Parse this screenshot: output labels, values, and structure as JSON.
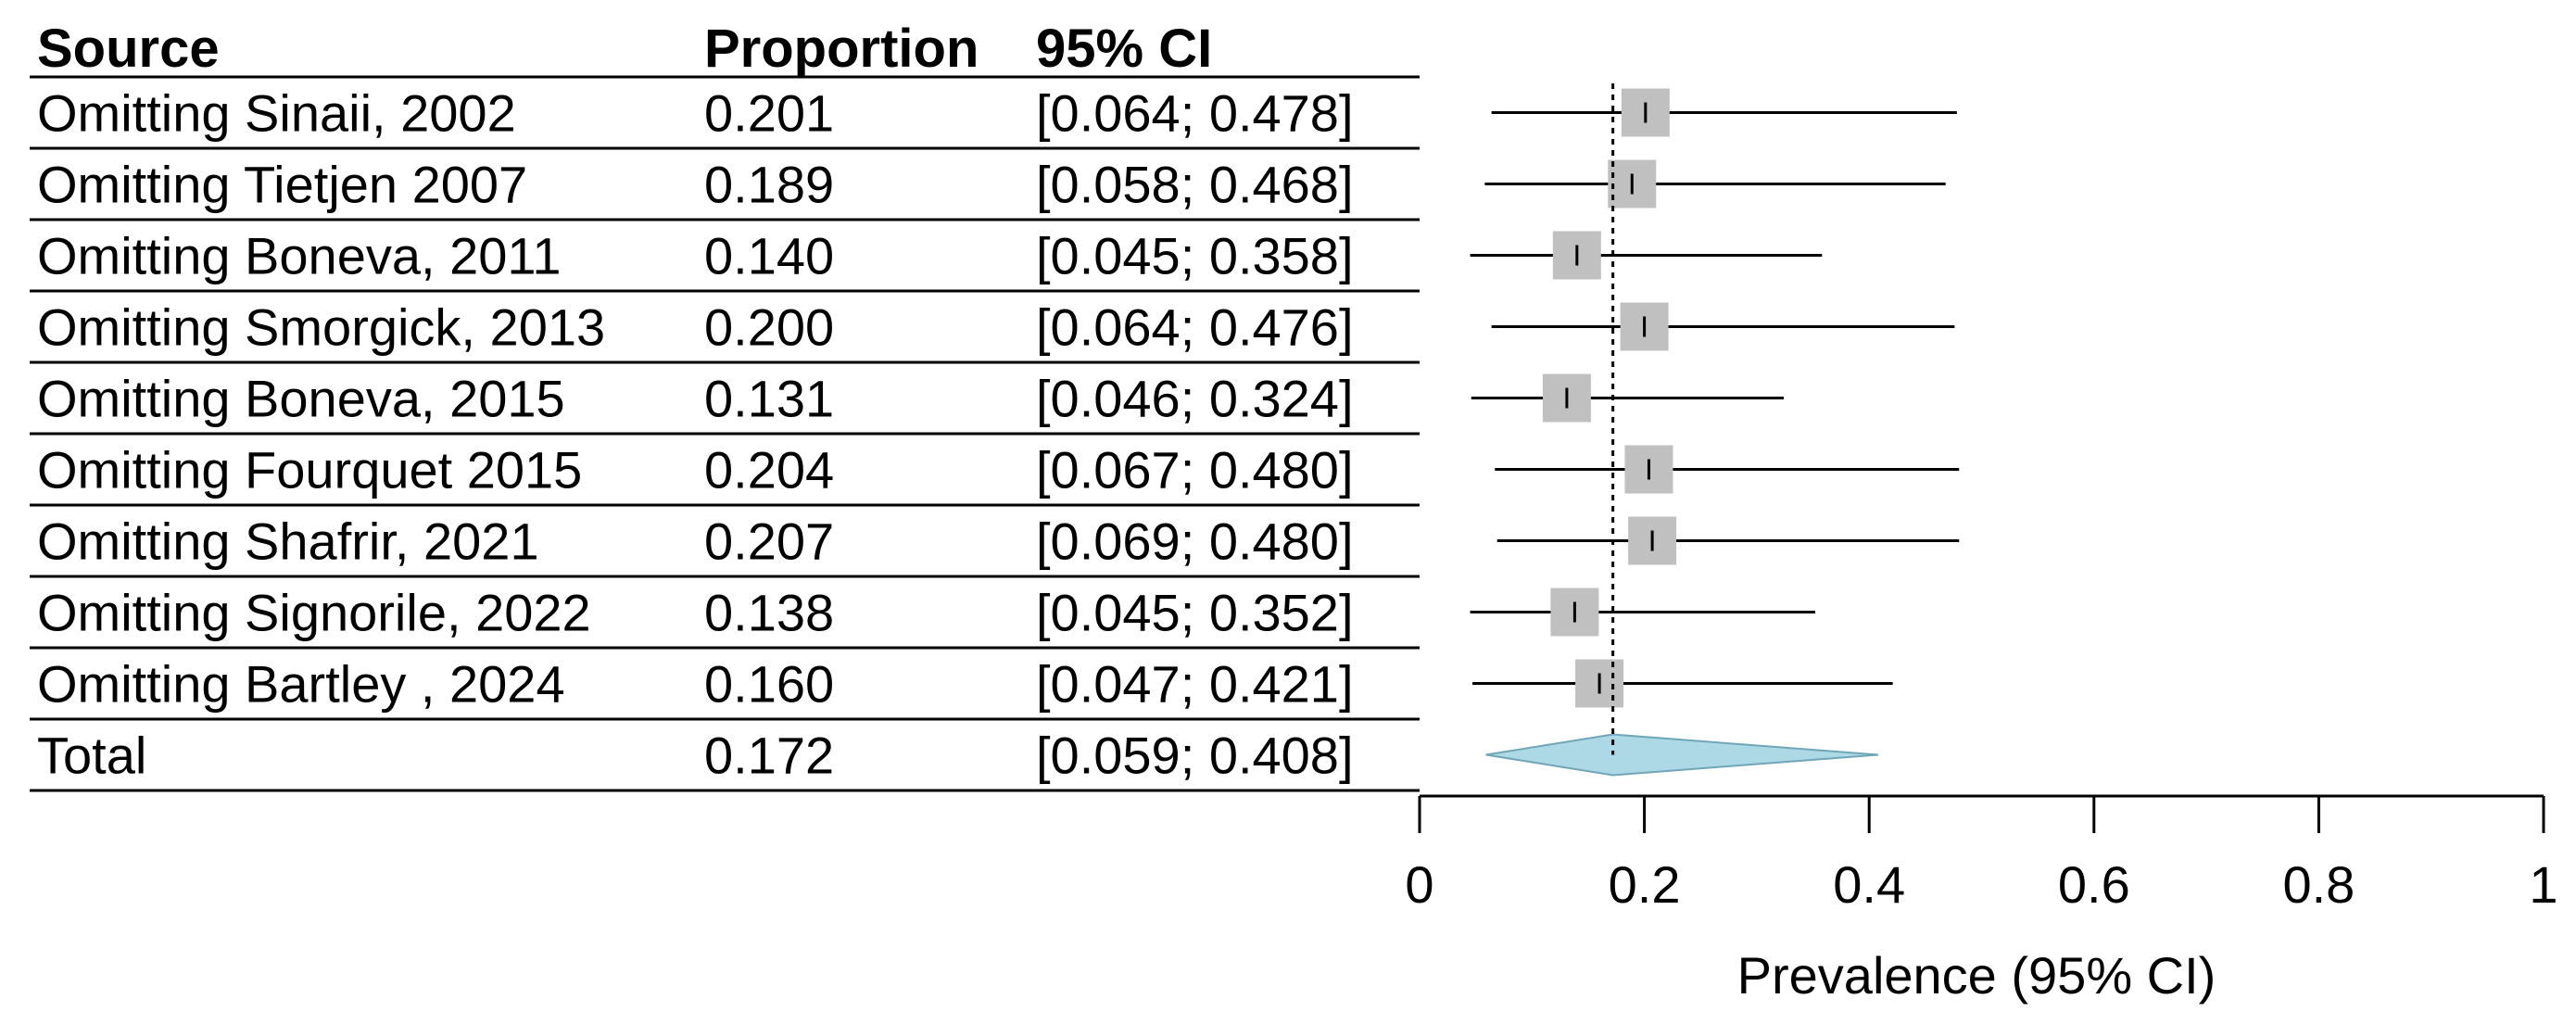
{
  "chart_data": {
    "type": "forest",
    "headers": {
      "source": "Source",
      "proportion": "Proportion",
      "ci": "95% CI"
    },
    "studies": [
      {
        "source": "Omitting Sinaii, 2002",
        "proportion_text": "0.201",
        "ci_text": "[0.064; 0.478]",
        "estimate": 0.201,
        "lower": 0.064,
        "upper": 0.478
      },
      {
        "source": "Omitting Tietjen 2007",
        "proportion_text": "0.189",
        "ci_text": "[0.058; 0.468]",
        "estimate": 0.189,
        "lower": 0.058,
        "upper": 0.468
      },
      {
        "source": "Omitting Boneva, 2011",
        "proportion_text": "0.140",
        "ci_text": "[0.045; 0.358]",
        "estimate": 0.14,
        "lower": 0.045,
        "upper": 0.358
      },
      {
        "source": "Omitting Smorgick, 2013",
        "proportion_text": "0.200",
        "ci_text": "[0.064; 0.476]",
        "estimate": 0.2,
        "lower": 0.064,
        "upper": 0.476
      },
      {
        "source": "Omitting Boneva, 2015",
        "proportion_text": "0.131",
        "ci_text": "[0.046; 0.324]",
        "estimate": 0.131,
        "lower": 0.046,
        "upper": 0.324
      },
      {
        "source": "Omitting Fourquet  2015",
        "proportion_text": "0.204",
        "ci_text": "[0.067; 0.480]",
        "estimate": 0.204,
        "lower": 0.067,
        "upper": 0.48
      },
      {
        "source": "Omitting Shafrir, 2021",
        "proportion_text": "0.207",
        "ci_text": "[0.069; 0.480]",
        "estimate": 0.207,
        "lower": 0.069,
        "upper": 0.48
      },
      {
        "source": "Omitting Signorile, 2022",
        "proportion_text": "0.138",
        "ci_text": "[0.045; 0.352]",
        "estimate": 0.138,
        "lower": 0.045,
        "upper": 0.352
      },
      {
        "source": "Omitting Bartley , 2024",
        "proportion_text": "0.160",
        "ci_text": "[0.047; 0.421]",
        "estimate": 0.16,
        "lower": 0.047,
        "upper": 0.421
      }
    ],
    "total": {
      "source": "Total",
      "proportion_text": "0.172",
      "ci_text": "[0.059; 0.408]",
      "estimate": 0.172,
      "lower": 0.059,
      "upper": 0.408
    },
    "reference_line": 0.172,
    "xlim": [
      0,
      1
    ],
    "xticks": [
      0,
      0.2,
      0.4,
      0.6,
      0.8,
      1
    ],
    "xtick_labels": [
      "0",
      "0.2",
      "0.4",
      "0.6",
      "0.8",
      "1"
    ],
    "xlabel": "Prevalence (95% CI)",
    "colors": {
      "square": "#c0c0c0",
      "diamond": "#add8e6",
      "line": "#000000"
    }
  }
}
